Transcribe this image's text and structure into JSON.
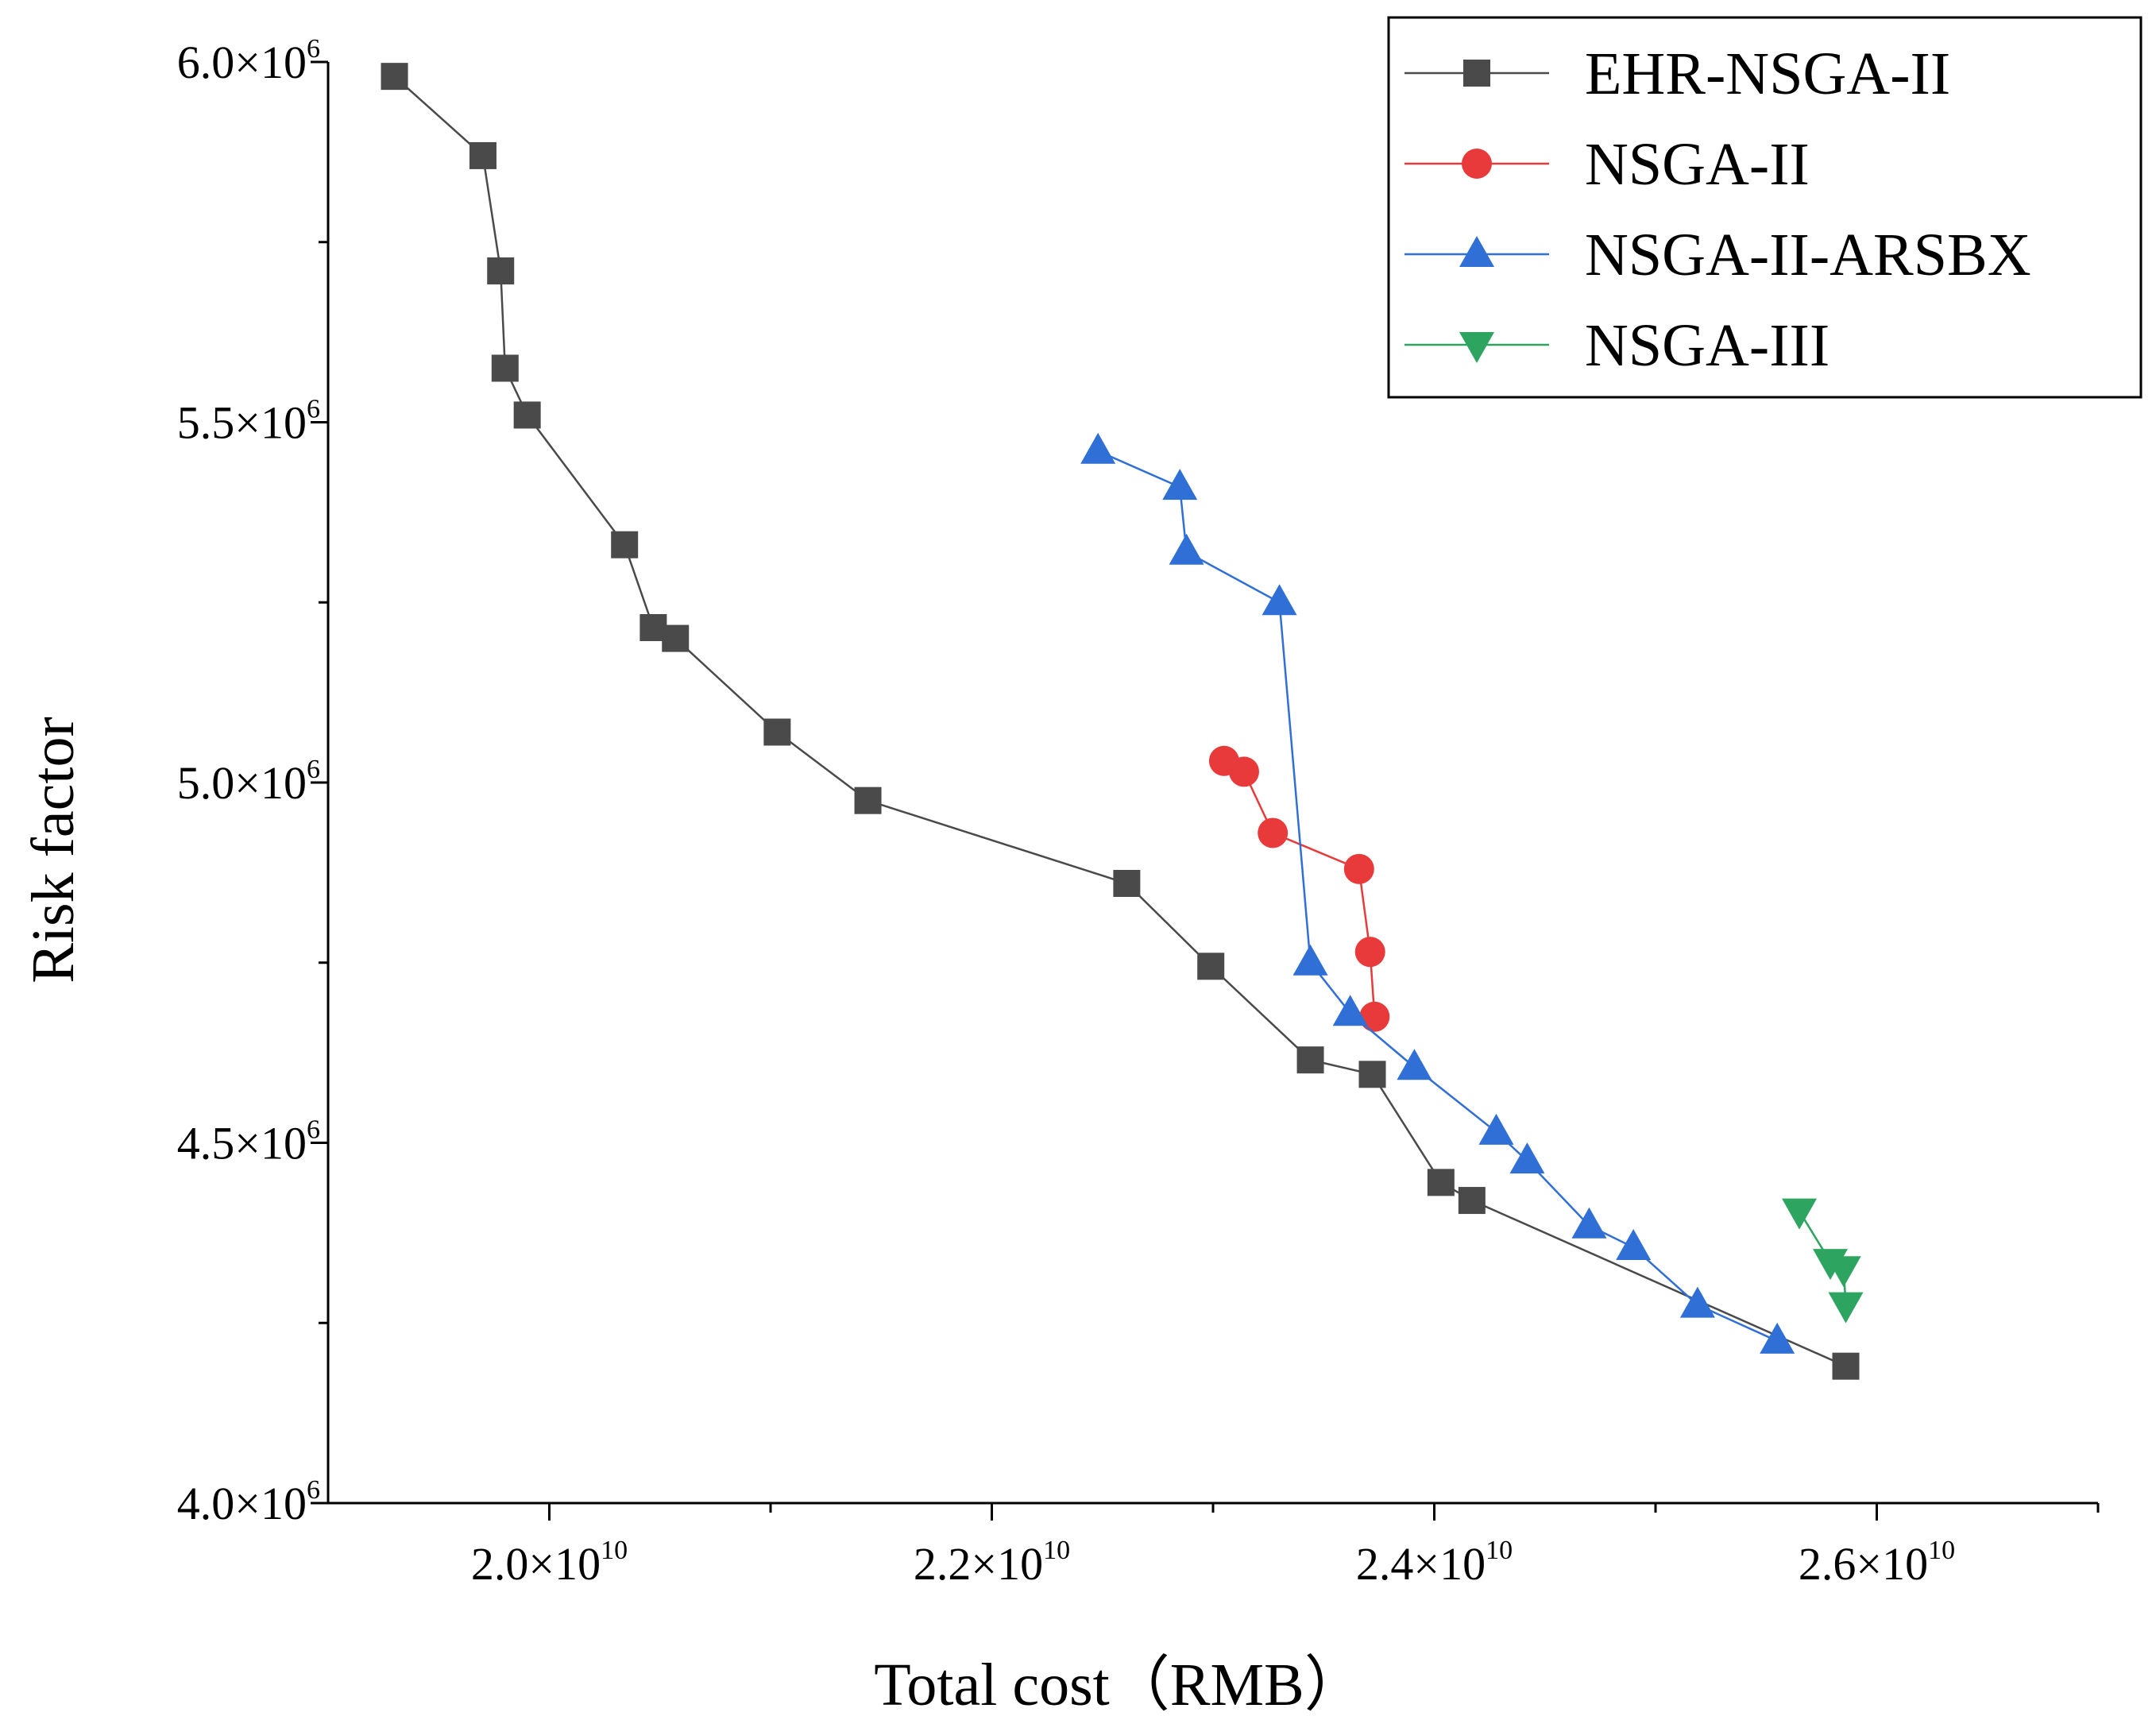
{
  "chart_data": {
    "type": "line",
    "title": "",
    "xlabel": "Total cost（RMB）",
    "ylabel": "Risk factor",
    "xlim": [
      19000000000,
      27000000000
    ],
    "ylim": [
      4000000,
      6000000
    ],
    "x_ticks": [
      {
        "value": 20000000000,
        "mantissa": "2.0×10",
        "exp": "10"
      },
      {
        "value": 22000000000,
        "mantissa": "2.2×10",
        "exp": "10"
      },
      {
        "value": 24000000000,
        "mantissa": "2.4×10",
        "exp": "10"
      },
      {
        "value": 26000000000,
        "mantissa": "2.6×10",
        "exp": "10"
      }
    ],
    "x_minor_ticks": [
      21000000000,
      23000000000,
      25000000000,
      27000000000
    ],
    "y_ticks": [
      {
        "value": 4000000,
        "mantissa": "4.0×10",
        "exp": "6"
      },
      {
        "value": 4500000,
        "mantissa": "4.5×10",
        "exp": "6"
      },
      {
        "value": 5000000,
        "mantissa": "5.0×10",
        "exp": "6"
      },
      {
        "value": 5500000,
        "mantissa": "5.5×10",
        "exp": "6"
      },
      {
        "value": 6000000,
        "mantissa": "6.0×10",
        "exp": "6"
      }
    ],
    "y_minor_ticks": [
      4250000,
      4750000,
      5250000,
      5750000
    ],
    "legend_position": "top-right",
    "series": [
      {
        "name": "EHR-NSGA-II",
        "color": "#4a4a4a",
        "marker": "square",
        "x": [
          19300000000,
          19700000000,
          19780000000,
          19800000000,
          19900000000,
          20340000000,
          20470000000,
          20570000000,
          21030000000,
          21440000000,
          22610000000,
          22990000000,
          23440000000,
          23720000000,
          24030000000,
          24170000000,
          25860000000
        ],
        "y": [
          5980000,
          5870000,
          5710000,
          5575000,
          5510000,
          5330000,
          5215000,
          5200000,
          5070000,
          4975000,
          4860000,
          4745000,
          4615000,
          4595000,
          4445000,
          4420000,
          4190000
        ]
      },
      {
        "name": "NSGA-II",
        "color": "#e83a3a",
        "marker": "circle",
        "x": [
          23050000000,
          23140000000,
          23270000000,
          23660000000,
          23710000000,
          23730000000
        ],
        "y": [
          5030000,
          5015000,
          4930000,
          4880000,
          4765000,
          4675000
        ]
      },
      {
        "name": "NSGA-II-ARSBX",
        "color": "#2f6fd6",
        "marker": "triangle-up",
        "x": [
          22480000000,
          22850000000,
          22880000000,
          23300000000,
          23440000000,
          23620000000,
          23910000000,
          24280000000,
          24420000000,
          24700000000,
          24900000000,
          25190000000,
          25550000000
        ],
        "y": [
          5460000,
          5410000,
          5320000,
          5250000,
          4750000,
          4680000,
          4605000,
          4515000,
          4475000,
          4385000,
          4355000,
          4275000,
          4225000
        ]
      },
      {
        "name": "NSGA-III",
        "color": "#2da560",
        "marker": "triangle-down",
        "x": [
          25650000000,
          25790000000,
          25850000000,
          25860000000
        ],
        "y": [
          4405000,
          4335000,
          4325000,
          4275000
        ]
      }
    ]
  }
}
